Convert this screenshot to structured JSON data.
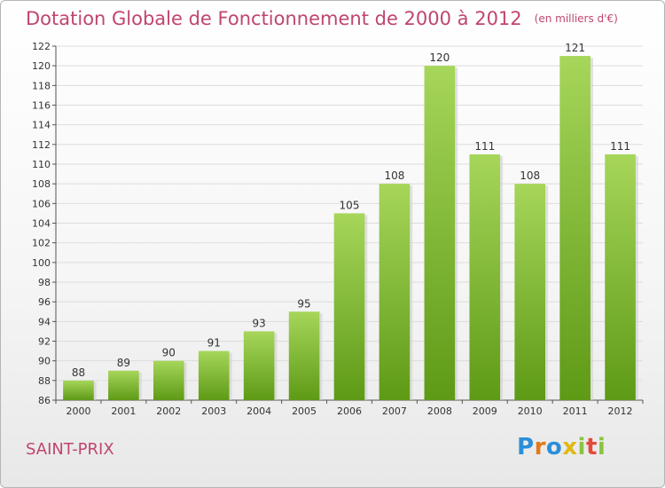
{
  "header": {
    "title": "Dotation Globale de Fonctionnement de 2000 à 2012",
    "unit": "(en milliers d'€)"
  },
  "footer": {
    "commune": "SAINT-PRIX",
    "logo_letters": [
      "P",
      "r",
      "o",
      "x",
      "i",
      "t",
      "i"
    ],
    "logo_colors": [
      "#2b8fd8",
      "#e07a1a",
      "#2b8fd8",
      "#e0b814",
      "#8ac43f",
      "#e24b3a",
      "#8ac43f"
    ]
  },
  "chart_data": {
    "type": "bar",
    "categories": [
      "2000",
      "2001",
      "2002",
      "2003",
      "2004",
      "2005",
      "2006",
      "2007",
      "2008",
      "2009",
      "2010",
      "2011",
      "2012"
    ],
    "values": [
      88,
      89,
      90,
      91,
      93,
      95,
      105,
      108,
      120,
      111,
      108,
      121,
      111
    ],
    "data_labels": [
      "88",
      "89",
      "90",
      "91",
      "93",
      "95",
      "105",
      "108",
      "120",
      "111",
      "108",
      "121",
      "111"
    ],
    "yticks": [
      86,
      88,
      90,
      92,
      94,
      96,
      98,
      100,
      102,
      104,
      106,
      108,
      110,
      112,
      114,
      116,
      118,
      120,
      122
    ],
    "ylim": [
      86,
      122
    ],
    "grid": true,
    "bar_color_top": "#a6d65a",
    "bar_color_bottom": "#5e9a16",
    "title": "Dotation Globale de Fonctionnement de 2000 à 2012",
    "xlabel": "",
    "ylabel": ""
  }
}
